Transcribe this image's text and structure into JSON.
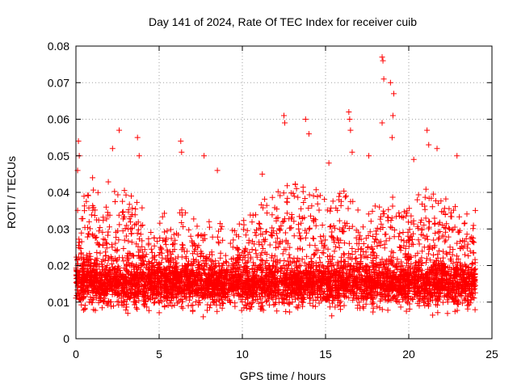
{
  "chart_data": {
    "type": "scatter",
    "title": "Day 141 of 2024, Rate Of TEC Index for receiver cuib",
    "xlabel": "GPS time / hours",
    "ylabel": "ROTI / TECUs",
    "xlim": [
      0,
      25
    ],
    "ylim": [
      0,
      0.08
    ],
    "xticks": [
      0,
      5,
      10,
      15,
      20,
      25
    ],
    "xtick_labels": [
      "0",
      "5",
      "10",
      "15",
      "20",
      "25"
    ],
    "yticks": [
      0,
      0.01,
      0.02,
      0.03,
      0.04,
      0.05,
      0.06,
      0.07,
      0.08
    ],
    "ytick_labels": [
      "0",
      "0.01",
      "0.02",
      "0.03",
      "0.04",
      "0.05",
      "0.06",
      "0.07",
      "0.08"
    ],
    "grid": true,
    "marker": "plus",
    "series_color": "#ff0000",
    "time_range": [
      0,
      24
    ],
    "dense_band": {
      "lower": 0.005,
      "upper": 0.025,
      "typical": 0.013
    },
    "envelope": [
      [
        0,
        0.03
      ],
      [
        1,
        0.033
      ],
      [
        2,
        0.035
      ],
      [
        3,
        0.034
      ],
      [
        4,
        0.03
      ],
      [
        5,
        0.027
      ],
      [
        6,
        0.029
      ],
      [
        7,
        0.026
      ],
      [
        8,
        0.025
      ],
      [
        9,
        0.023
      ],
      [
        10,
        0.025
      ],
      [
        11,
        0.029
      ],
      [
        12,
        0.033
      ],
      [
        13,
        0.035
      ],
      [
        14,
        0.034
      ],
      [
        15,
        0.031
      ],
      [
        16,
        0.033
      ],
      [
        17,
        0.03
      ],
      [
        18,
        0.029
      ],
      [
        19,
        0.033
      ],
      [
        20,
        0.028
      ],
      [
        21,
        0.034
      ],
      [
        22,
        0.031
      ],
      [
        23,
        0.03
      ],
      [
        24,
        0.028
      ]
    ],
    "outliers": [
      {
        "x": 0.15,
        "y": 0.054
      },
      {
        "x": 0.2,
        "y": 0.05
      },
      {
        "x": 0.1,
        "y": 0.046
      },
      {
        "x": 1.0,
        "y": 0.044
      },
      {
        "x": 2.2,
        "y": 0.052
      },
      {
        "x": 2.6,
        "y": 0.057
      },
      {
        "x": 3.7,
        "y": 0.055
      },
      {
        "x": 3.8,
        "y": 0.05
      },
      {
        "x": 6.3,
        "y": 0.054
      },
      {
        "x": 6.35,
        "y": 0.051
      },
      {
        "x": 7.7,
        "y": 0.05
      },
      {
        "x": 8.5,
        "y": 0.046
      },
      {
        "x": 12.5,
        "y": 0.061
      },
      {
        "x": 12.55,
        "y": 0.059
      },
      {
        "x": 13.8,
        "y": 0.06
      },
      {
        "x": 14.0,
        "y": 0.056
      },
      {
        "x": 16.4,
        "y": 0.062
      },
      {
        "x": 16.45,
        "y": 0.06
      },
      {
        "x": 16.5,
        "y": 0.057
      },
      {
        "x": 16.6,
        "y": 0.051
      },
      {
        "x": 18.4,
        "y": 0.077
      },
      {
        "x": 18.45,
        "y": 0.076
      },
      {
        "x": 18.5,
        "y": 0.071
      },
      {
        "x": 18.9,
        "y": 0.07
      },
      {
        "x": 19.1,
        "y": 0.067
      },
      {
        "x": 19.05,
        "y": 0.061
      },
      {
        "x": 18.4,
        "y": 0.059
      },
      {
        "x": 19.0,
        "y": 0.055
      },
      {
        "x": 20.3,
        "y": 0.049
      },
      {
        "x": 21.1,
        "y": 0.057
      },
      {
        "x": 21.2,
        "y": 0.053
      },
      {
        "x": 21.7,
        "y": 0.052
      },
      {
        "x": 22.9,
        "y": 0.05
      },
      {
        "x": 17.6,
        "y": 0.05
      },
      {
        "x": 15.2,
        "y": 0.048
      },
      {
        "x": 11.2,
        "y": 0.045
      }
    ]
  }
}
